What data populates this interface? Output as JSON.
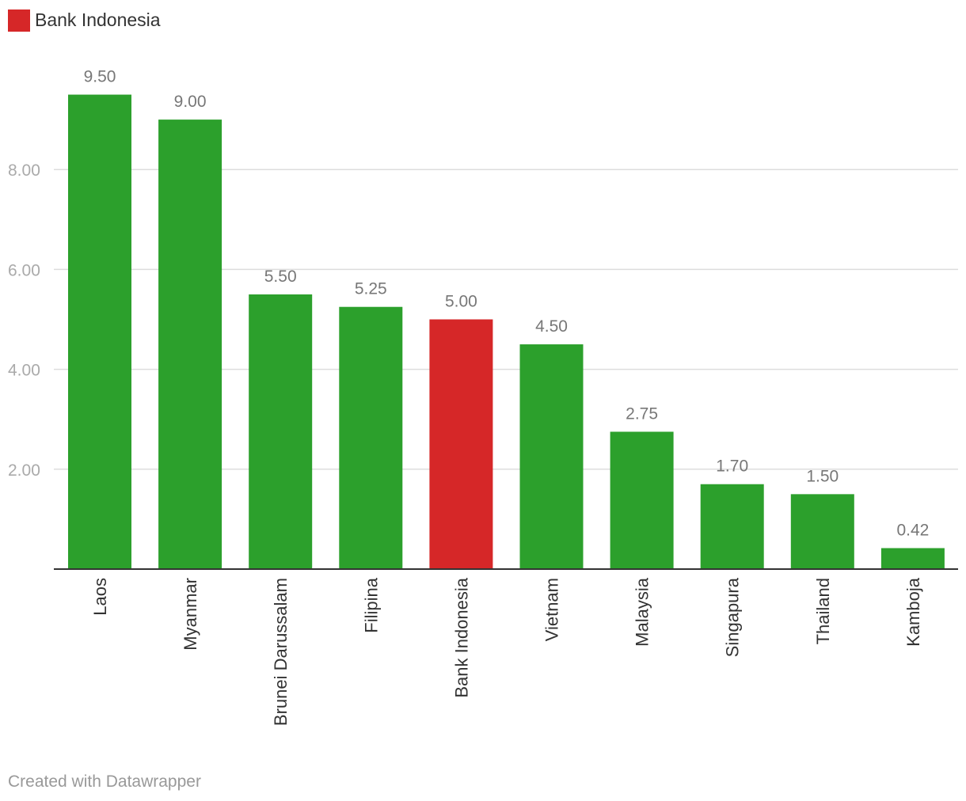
{
  "legend": {
    "label": "Bank Indonesia",
    "color": "#d62728"
  },
  "footer": {
    "text": "Created with Datawrapper"
  },
  "colors": {
    "default_bar": "#2ca02c",
    "highlight_bar": "#d62728",
    "gridline": "#dddddd",
    "baseline": "#333333"
  },
  "chart_data": {
    "type": "bar",
    "title": "",
    "xlabel": "",
    "ylabel": "",
    "categories": [
      "Laos",
      "Myanmar",
      "Brunei Darussalam",
      "Filipina",
      "Bank Indonesia",
      "Vietnam",
      "Malaysia",
      "Singapura",
      "Thailand",
      "Kamboja"
    ],
    "values": [
      9.5,
      9.0,
      5.5,
      5.25,
      5.0,
      4.5,
      2.75,
      1.7,
      1.5,
      0.42
    ],
    "value_labels": [
      "9.50",
      "9.00",
      "5.50",
      "5.25",
      "5.00",
      "4.50",
      "2.75",
      "1.70",
      "1.50",
      "0.42"
    ],
    "highlight": [
      "Bank Indonesia"
    ],
    "yticks": [
      2,
      4,
      6,
      8
    ],
    "ytick_labels": [
      "2.00",
      "4.00",
      "6.00",
      "8.00"
    ],
    "ylim": [
      0,
      9.5
    ],
    "grid": true,
    "legend_position": "top-left"
  }
}
